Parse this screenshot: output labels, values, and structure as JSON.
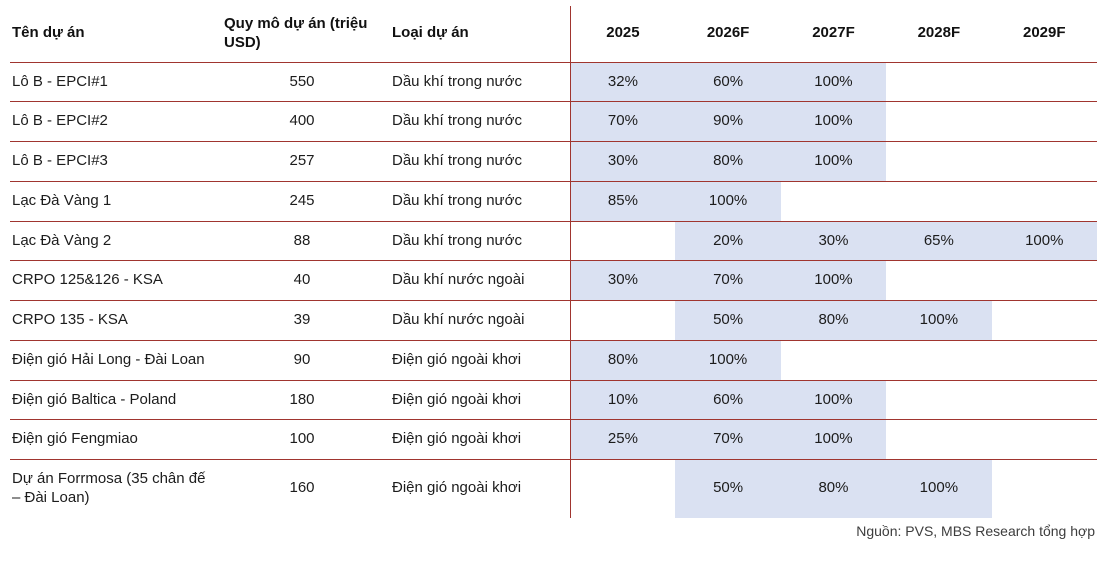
{
  "colors": {
    "highlight": "#dae1f2",
    "line": "#a0352f",
    "header_text": "#111111",
    "body_text": "#1c1c1c"
  },
  "table": {
    "columns": [
      {
        "key": "name",
        "label": "Tên dự án"
      },
      {
        "key": "size",
        "label": "Quy mô dự án (triệu USD)"
      },
      {
        "key": "type",
        "label": "Loại dự án"
      },
      {
        "key": "y2025",
        "label": "2025"
      },
      {
        "key": "y2026",
        "label": "2026F"
      },
      {
        "key": "y2027",
        "label": "2027F"
      },
      {
        "key": "y2028",
        "label": "2028F"
      },
      {
        "key": "y2029",
        "label": "2029F"
      }
    ],
    "rows": [
      {
        "name": "Lô B - EPCI#1",
        "size": "550",
        "type": "Dầu khí trong nước",
        "years": [
          "32%",
          "60%",
          "100%",
          "",
          ""
        ]
      },
      {
        "name": "Lô B - EPCI#2",
        "size": "400",
        "type": "Dầu khí trong nước",
        "years": [
          "70%",
          "90%",
          "100%",
          "",
          ""
        ]
      },
      {
        "name": "Lô B - EPCI#3",
        "size": "257",
        "type": "Dầu khí trong nước",
        "years": [
          "30%",
          "80%",
          "100%",
          "",
          ""
        ]
      },
      {
        "name": "Lạc Đà Vàng 1",
        "size": "245",
        "type": "Dầu khí trong nước",
        "years": [
          "85%",
          "100%",
          "",
          "",
          ""
        ]
      },
      {
        "name": "Lạc Đà Vàng 2",
        "size": "88",
        "type": "Dầu khí trong nước",
        "years": [
          "",
          "20%",
          "30%",
          "65%",
          "100%"
        ]
      },
      {
        "name": "CRPO 125&126 - KSA",
        "size": "40",
        "type": "Dầu khí nước ngoài",
        "years": [
          "30%",
          "70%",
          "100%",
          "",
          ""
        ]
      },
      {
        "name": "CRPO 135 - KSA",
        "size": "39",
        "type": "Dầu khí nước ngoài",
        "years": [
          "",
          "50%",
          "80%",
          "100%",
          ""
        ]
      },
      {
        "name": "Điện gió Hải Long - Đài Loan",
        "size": "90",
        "type": "Điện gió ngoài khơi",
        "years": [
          "80%",
          "100%",
          "",
          "",
          ""
        ]
      },
      {
        "name": "Điện gió Baltica - Poland",
        "size": "180",
        "type": "Điện gió ngoài khơi",
        "years": [
          "10%",
          "60%",
          "100%",
          "",
          ""
        ]
      },
      {
        "name": "Điện gió Fengmiao",
        "size": "100",
        "type": "Điện gió ngoài khơi",
        "years": [
          "25%",
          "70%",
          "100%",
          "",
          ""
        ]
      },
      {
        "name": "Dự án Forrmosa (35 chân đế – Đài Loan)",
        "size": "160",
        "type": "Điện gió ngoài khơi",
        "years": [
          "",
          "50%",
          "80%",
          "100%",
          ""
        ]
      }
    ],
    "source": "Nguồn: PVS, MBS Research tổng hợp"
  }
}
